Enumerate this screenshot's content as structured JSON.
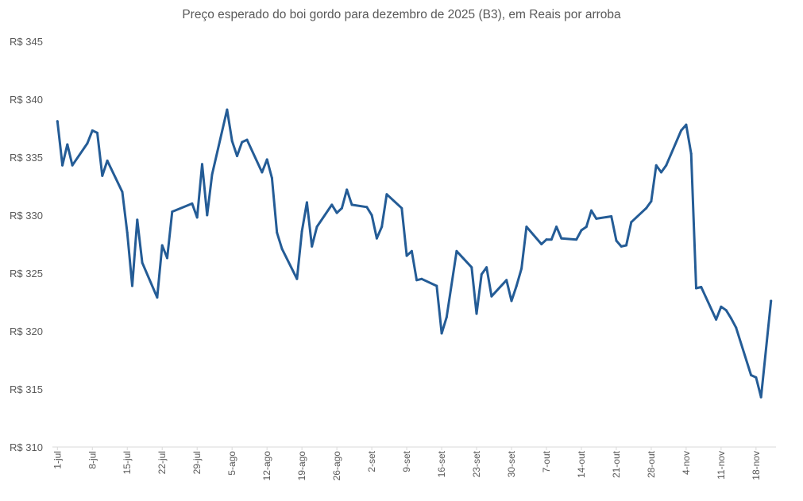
{
  "chart_data": {
    "type": "line",
    "title": "Preço esperado do boi gordo para dezembro de 2025 (B3), em Reais por arroba",
    "xlabel": "",
    "ylabel": "",
    "ylim": [
      310,
      345
    ],
    "y_ticks": [
      310,
      315,
      320,
      325,
      330,
      335,
      340,
      345
    ],
    "y_tick_labels": [
      "R$ 310",
      "R$ 315",
      "R$ 320",
      "R$ 325",
      "R$ 330",
      "R$ 335",
      "R$ 340",
      "R$ 345"
    ],
    "x_tick_dates": [
      "2025-07-01",
      "2025-07-08",
      "2025-07-15",
      "2025-07-22",
      "2025-07-29",
      "2025-08-05",
      "2025-08-12",
      "2025-08-19",
      "2025-08-26",
      "2025-09-02",
      "2025-09-09",
      "2025-09-16",
      "2025-09-23",
      "2025-09-30",
      "2025-10-07",
      "2025-10-14",
      "2025-10-21",
      "2025-10-28",
      "2025-11-04",
      "2025-11-11",
      "2025-11-18"
    ],
    "x_tick_labels": [
      "1-jul",
      "8-jul",
      "15-jul",
      "22-jul",
      "29-jul",
      "5-ago",
      "12-ago",
      "19-ago",
      "26-ago",
      "2-set",
      "9-set",
      "16-set",
      "23-set",
      "30-set",
      "7-out",
      "14-out",
      "21-out",
      "28-out",
      "4-nov",
      "11-nov",
      "18-nov"
    ],
    "xlim": [
      "2025-06-30",
      "2025-11-22"
    ],
    "grid": false,
    "legend": "none",
    "color": "#245c96",
    "series": [
      {
        "x": [
          "2025-07-01",
          "2025-07-02",
          "2025-07-03",
          "2025-07-04",
          "2025-07-07",
          "2025-07-08",
          "2025-07-09",
          "2025-07-10",
          "2025-07-11",
          "2025-07-14",
          "2025-07-15",
          "2025-07-16",
          "2025-07-17",
          "2025-07-18",
          "2025-07-21",
          "2025-07-22",
          "2025-07-23",
          "2025-07-24",
          "2025-07-28",
          "2025-07-29",
          "2025-07-30",
          "2025-07-31",
          "2025-08-01",
          "2025-08-04",
          "2025-08-05",
          "2025-08-06",
          "2025-08-07",
          "2025-08-08",
          "2025-08-11",
          "2025-08-12",
          "2025-08-13",
          "2025-08-14",
          "2025-08-15",
          "2025-08-18",
          "2025-08-19",
          "2025-08-20",
          "2025-08-21",
          "2025-08-22",
          "2025-08-25",
          "2025-08-26",
          "2025-08-27",
          "2025-08-28",
          "2025-08-29",
          "2025-09-01",
          "2025-09-02",
          "2025-09-03",
          "2025-09-04",
          "2025-09-05",
          "2025-09-08",
          "2025-09-09",
          "2025-09-10",
          "2025-09-11",
          "2025-09-12",
          "2025-09-15",
          "2025-09-16",
          "2025-09-17",
          "2025-09-19",
          "2025-09-22",
          "2025-09-23",
          "2025-09-24",
          "2025-09-25",
          "2025-09-26",
          "2025-09-29",
          "2025-09-30",
          "2025-10-01",
          "2025-10-02",
          "2025-10-03",
          "2025-10-06",
          "2025-10-07",
          "2025-10-08",
          "2025-10-09",
          "2025-10-10",
          "2025-10-13",
          "2025-10-14",
          "2025-10-15",
          "2025-10-16",
          "2025-10-17",
          "2025-10-20",
          "2025-10-21",
          "2025-10-22",
          "2025-10-23",
          "2025-10-24",
          "2025-10-27",
          "2025-10-28",
          "2025-10-29",
          "2025-10-30",
          "2025-10-31",
          "2025-11-03",
          "2025-11-04",
          "2025-11-05",
          "2025-11-06",
          "2025-11-07",
          "2025-11-10",
          "2025-11-11",
          "2025-11-12",
          "2025-11-13",
          "2025-11-14",
          "2025-11-17",
          "2025-11-18",
          "2025-11-19",
          "2025-11-21"
        ],
        "values": [
          338.1,
          334.3,
          336.1,
          334.3,
          336.2,
          337.3,
          337.1,
          333.4,
          334.7,
          332.0,
          328.5,
          323.9,
          329.6,
          325.9,
          322.9,
          327.4,
          326.3,
          330.3,
          331.0,
          329.8,
          334.4,
          330.0,
          333.5,
          339.1,
          336.4,
          335.1,
          336.3,
          336.5,
          333.7,
          334.8,
          333.2,
          328.5,
          327.1,
          324.5,
          328.6,
          331.1,
          327.3,
          329.0,
          330.9,
          330.2,
          330.6,
          332.2,
          330.9,
          330.7,
          330.0,
          328.0,
          329.0,
          331.8,
          330.6,
          326.5,
          326.9,
          324.4,
          324.5,
          323.9,
          319.8,
          321.2,
          326.9,
          325.5,
          321.5,
          324.9,
          325.5,
          323.0,
          324.4,
          322.6,
          323.9,
          325.4,
          329.0,
          327.5,
          327.9,
          327.9,
          329.0,
          328.0,
          327.9,
          328.7,
          329.0,
          330.4,
          329.7,
          329.9,
          327.8,
          327.3,
          327.4,
          329.4,
          330.6,
          331.2,
          334.3,
          333.7,
          334.3,
          337.3,
          337.8,
          335.3,
          323.7,
          323.8,
          321.0,
          322.1,
          321.8,
          321.1,
          320.3,
          316.2,
          316.0,
          314.3,
          322.6
        ]
      }
    ]
  }
}
